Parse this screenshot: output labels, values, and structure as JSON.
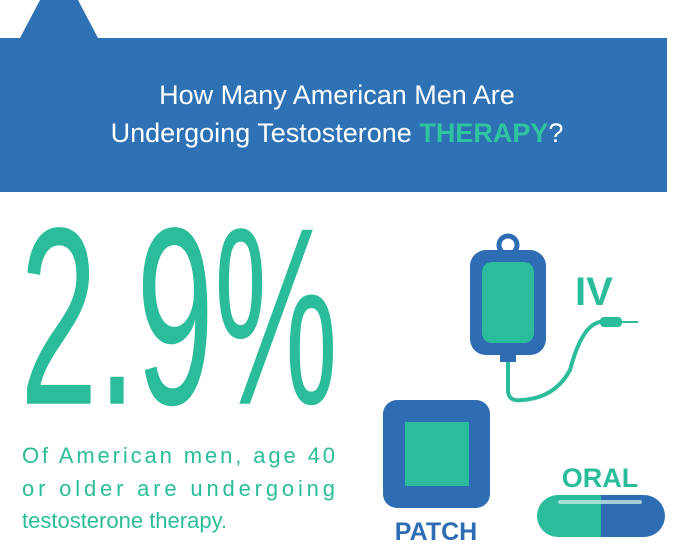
{
  "header": {
    "title_line1": "How Many American Men Are",
    "title_line2": "Undergoing Testosterone",
    "title_highlight": "THERAPY",
    "title_end": "?"
  },
  "stat": {
    "value": "2.9%",
    "description": [
      "Of American men, age 40",
      "or older are undergoing",
      "testosterone therapy."
    ]
  },
  "methods": {
    "iv": "IV",
    "patch": "PATCH",
    "oral": "ORAL"
  }
}
